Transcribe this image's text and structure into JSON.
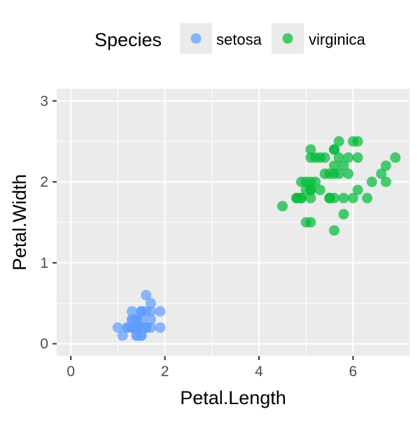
{
  "chart_data": {
    "type": "scatter",
    "xlabel": "Petal.Length",
    "ylabel": "Petal.Width",
    "xlim": [
      -0.3,
      7.2
    ],
    "ylim": [
      -0.15,
      3.15
    ],
    "x_ticks": [
      0,
      2,
      4,
      6
    ],
    "y_ticks": [
      0,
      1,
      2,
      3
    ],
    "grid": true,
    "legend": {
      "title": "Species",
      "position": "top"
    },
    "series": [
      {
        "name": "setosa",
        "color": "#619CFF",
        "points": [
          [
            1.4,
            0.2
          ],
          [
            1.4,
            0.2
          ],
          [
            1.3,
            0.2
          ],
          [
            1.5,
            0.2
          ],
          [
            1.4,
            0.2
          ],
          [
            1.7,
            0.4
          ],
          [
            1.4,
            0.3
          ],
          [
            1.5,
            0.2
          ],
          [
            1.4,
            0.2
          ],
          [
            1.5,
            0.1
          ],
          [
            1.5,
            0.2
          ],
          [
            1.6,
            0.2
          ],
          [
            1.4,
            0.1
          ],
          [
            1.1,
            0.1
          ],
          [
            1.2,
            0.2
          ],
          [
            1.5,
            0.4
          ],
          [
            1.3,
            0.4
          ],
          [
            1.4,
            0.3
          ],
          [
            1.7,
            0.3
          ],
          [
            1.5,
            0.3
          ],
          [
            1.7,
            0.2
          ],
          [
            1.5,
            0.4
          ],
          [
            1.0,
            0.2
          ],
          [
            1.7,
            0.5
          ],
          [
            1.9,
            0.2
          ],
          [
            1.6,
            0.2
          ],
          [
            1.6,
            0.4
          ],
          [
            1.5,
            0.2
          ],
          [
            1.4,
            0.2
          ],
          [
            1.6,
            0.2
          ],
          [
            1.6,
            0.2
          ],
          [
            1.5,
            0.4
          ],
          [
            1.5,
            0.1
          ],
          [
            1.4,
            0.2
          ],
          [
            1.5,
            0.2
          ],
          [
            1.2,
            0.2
          ],
          [
            1.3,
            0.2
          ],
          [
            1.4,
            0.1
          ],
          [
            1.3,
            0.2
          ],
          [
            1.5,
            0.2
          ],
          [
            1.3,
            0.3
          ],
          [
            1.3,
            0.3
          ],
          [
            1.3,
            0.2
          ],
          [
            1.6,
            0.6
          ],
          [
            1.9,
            0.4
          ],
          [
            1.4,
            0.3
          ],
          [
            1.6,
            0.2
          ],
          [
            1.4,
            0.2
          ],
          [
            1.5,
            0.2
          ],
          [
            1.4,
            0.2
          ]
        ]
      },
      {
        "name": "virginica",
        "color": "#00BA38",
        "points": [
          [
            6.0,
            2.5
          ],
          [
            5.1,
            1.9
          ],
          [
            5.9,
            2.1
          ],
          [
            5.6,
            1.8
          ],
          [
            5.8,
            2.2
          ],
          [
            6.6,
            2.1
          ],
          [
            4.5,
            1.7
          ],
          [
            6.3,
            1.8
          ],
          [
            5.8,
            1.8
          ],
          [
            6.1,
            2.5
          ],
          [
            5.1,
            2.0
          ],
          [
            5.3,
            1.9
          ],
          [
            5.5,
            2.1
          ],
          [
            5.0,
            2.0
          ],
          [
            5.1,
            2.4
          ],
          [
            5.3,
            2.3
          ],
          [
            5.5,
            1.8
          ],
          [
            6.7,
            2.2
          ],
          [
            6.9,
            2.3
          ],
          [
            5.0,
            1.5
          ],
          [
            5.7,
            2.3
          ],
          [
            4.9,
            2.0
          ],
          [
            6.7,
            2.0
          ],
          [
            4.9,
            1.8
          ],
          [
            5.7,
            2.1
          ],
          [
            6.0,
            1.8
          ],
          [
            4.8,
            1.8
          ],
          [
            4.9,
            1.8
          ],
          [
            5.6,
            2.1
          ],
          [
            5.8,
            1.6
          ],
          [
            6.1,
            1.9
          ],
          [
            6.4,
            2.0
          ],
          [
            5.6,
            2.2
          ],
          [
            5.1,
            1.5
          ],
          [
            5.6,
            1.4
          ],
          [
            6.1,
            2.3
          ],
          [
            5.6,
            2.4
          ],
          [
            5.5,
            1.8
          ],
          [
            4.8,
            1.8
          ],
          [
            5.4,
            2.1
          ],
          [
            5.6,
            2.4
          ],
          [
            5.1,
            2.3
          ],
          [
            5.1,
            1.9
          ],
          [
            5.9,
            2.3
          ],
          [
            5.7,
            2.5
          ],
          [
            5.2,
            2.3
          ],
          [
            5.0,
            1.9
          ],
          [
            5.2,
            2.0
          ],
          [
            5.4,
            2.3
          ],
          [
            5.1,
            1.8
          ]
        ]
      }
    ]
  }
}
